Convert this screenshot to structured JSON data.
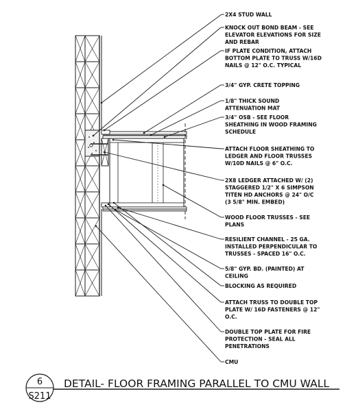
{
  "notes": [
    [
      "2X4 STUD WALL"
    ],
    [
      "KNOCK OUT BOND BEAM - SEE",
      "ELEVATOR ELEVATIONS FOR SIZE",
      "AND REBAR"
    ],
    [
      "IF PLATE CONDITION, ATTACH",
      "BOTTOM PLATE TO TRUSS W/16D",
      "NAILS @ 12\" O.C. TYPICAL"
    ],
    [
      "3/4\" GYP. CRETE TOPPING"
    ],
    [
      "1/8\" THICK SOUND",
      "ATTENUATION MAT"
    ],
    [
      "3/4\" OSB - SEE FLOOR",
      "SHEATHING IN WOOD FRAMING",
      "SCHEDULE"
    ],
    [
      "ATTACH FLOOR SHEATHING TO",
      "LEDGER AND FLOOR TRUSSES",
      "W/10D NAILS @ 6\" O.C."
    ],
    [
      "2X8 LEDGER ATTACHED W/ (2)",
      "STAGGERED 1/2\" X 6  SIMPSON",
      "TITEN HD ANCHORS  @ 24\" O/C",
      "(3 5/8\" MIN. EMBED)"
    ],
    [
      "WOOD FLOOR TRUSSES - SEE",
      "PLANS"
    ],
    [
      "RESILIENT CHANNEL -  25 GA.",
      "INSTALLED PERPENDICULAR TO",
      "TRUSSES -  SPACED 16\" O.C."
    ],
    [
      "5/8\" GYP. BD. (PAINTED) AT",
      "CEILING"
    ],
    [
      "BLOCKING AS REQUIRED"
    ],
    [
      "ATTACH TRUSS TO DOUBLE TOP",
      "PLATE W/ 16D FASTENERS @ 12\"",
      "O.C."
    ],
    [
      "DOUBLE TOP PLATE FOR FIRE",
      "PROTECTION - SEAL ALL",
      "PENETRATIONS"
    ],
    [
      "CMU"
    ]
  ],
  "detail": {
    "number": "6",
    "sheet": "S211",
    "title": "DETAIL- FLOOR FRAMING PARALLEL TO CMU WALL"
  }
}
